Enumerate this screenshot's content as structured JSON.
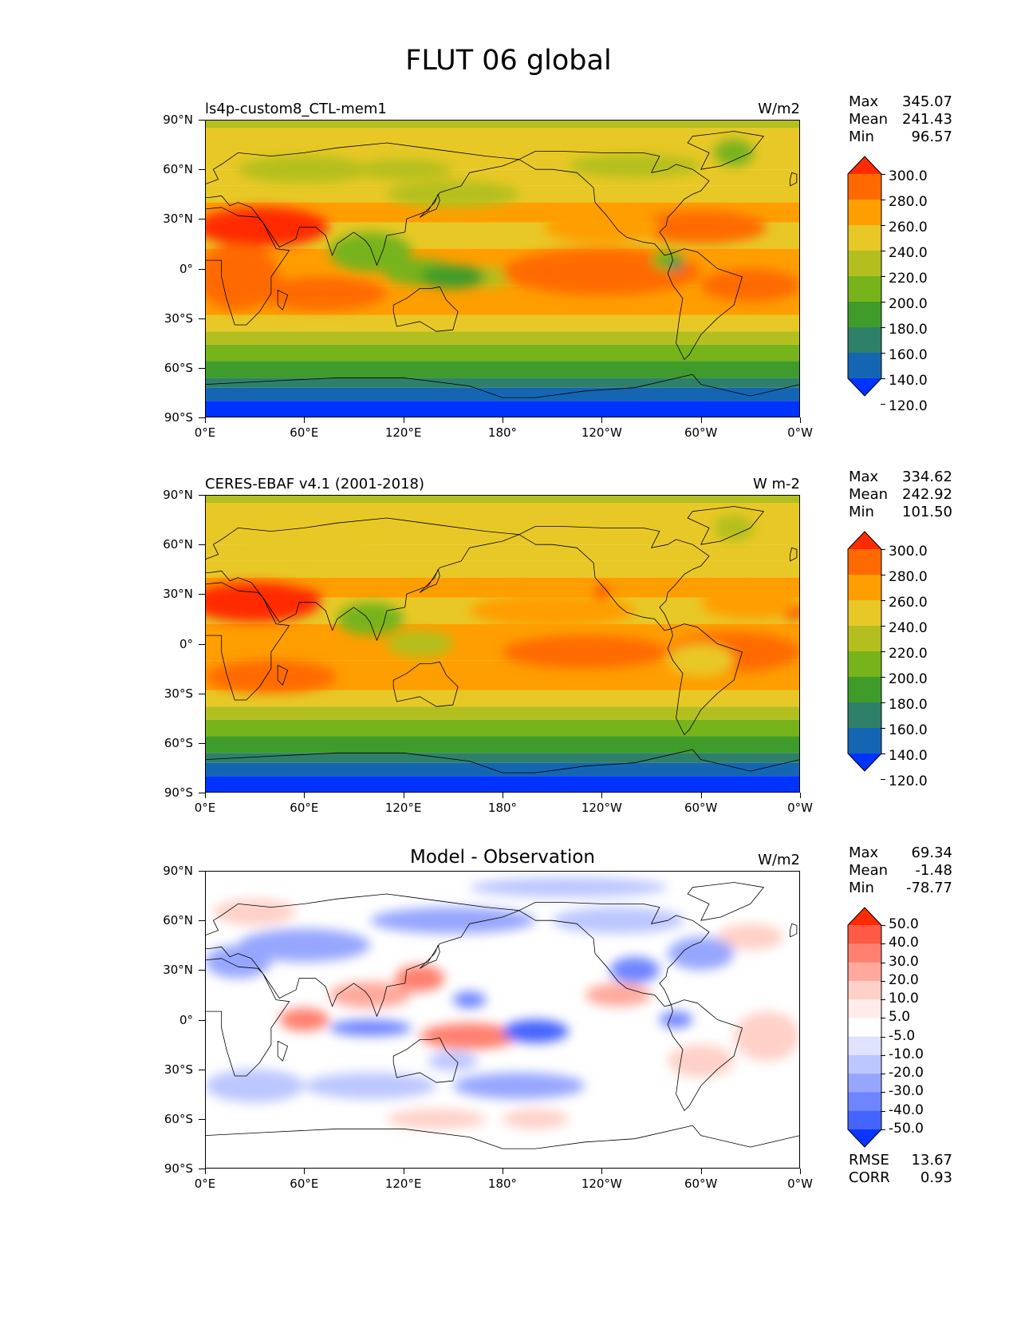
{
  "figure": {
    "title": "FLUT 06 global"
  },
  "axes": {
    "lat_labels": [
      "90°N",
      "60°N",
      "30°N",
      "0°",
      "30°S",
      "60°S",
      "90°S"
    ],
    "lon_labels": [
      "0°E",
      "60°E",
      "120°E",
      "180°",
      "120°W",
      "60°W",
      "0°W"
    ]
  },
  "panels": [
    {
      "title_left": "ls4p-custom8_CTL-mem1",
      "title_center": "",
      "units": "W/m2",
      "stats": {
        "max_label": "Max",
        "max": "345.07",
        "mean_label": "Mean",
        "mean": "241.43",
        "min_label": "Min",
        "min": "96.57"
      },
      "colorbar": {
        "labels": [
          "300.0",
          "280.0",
          "260.0",
          "240.0",
          "220.0",
          "200.0",
          "180.0",
          "160.0",
          "140.0",
          "120.0"
        ],
        "colors": [
          "#ff2b00",
          "#ff6a00",
          "#ff9e00",
          "#e8c826",
          "#b3bf1f",
          "#77b31a",
          "#3f9c2a",
          "#2f8068",
          "#1466b3",
          "#0033ff"
        ]
      }
    },
    {
      "title_left": "CERES-EBAF v4.1 (2001-2018)",
      "title_center": "",
      "units": "W m-2",
      "stats": {
        "max_label": "Max",
        "max": "334.62",
        "mean_label": "Mean",
        "mean": "242.92",
        "min_label": "Min",
        "min": "101.50"
      },
      "colorbar": {
        "labels": [
          "300.0",
          "280.0",
          "260.0",
          "240.0",
          "220.0",
          "200.0",
          "180.0",
          "160.0",
          "140.0",
          "120.0"
        ],
        "colors": [
          "#ff2b00",
          "#ff6a00",
          "#ff9e00",
          "#e8c826",
          "#b3bf1f",
          "#77b31a",
          "#3f9c2a",
          "#2f8068",
          "#1466b3",
          "#0033ff"
        ]
      }
    },
    {
      "title_left": "",
      "title_center": "Model - Observation",
      "units": "W/m2",
      "stats": {
        "max_label": "Max",
        "max": "69.34",
        "mean_label": "Mean",
        "mean": "-1.48",
        "min_label": "Min",
        "min": "-78.77"
      },
      "extra": {
        "rmse_label": "RMSE",
        "rmse": "13.67",
        "corr_label": "CORR",
        "corr": "0.93"
      },
      "colorbar": {
        "labels": [
          "50.0",
          "40.0",
          "30.0",
          "20.0",
          "10.0",
          "5.0",
          "-5.0",
          "-10.0",
          "-20.0",
          "-30.0",
          "-40.0",
          "-50.0"
        ],
        "colors": [
          "#ff2b00",
          "#ff5a45",
          "#ff8070",
          "#ffa89b",
          "#ffd0c8",
          "#ffecea",
          "#ffffff",
          "#dfe3ff",
          "#bcc6ff",
          "#96a6ff",
          "#6f85ff",
          "#4563ff",
          "#0a35ff"
        ]
      }
    }
  ]
}
